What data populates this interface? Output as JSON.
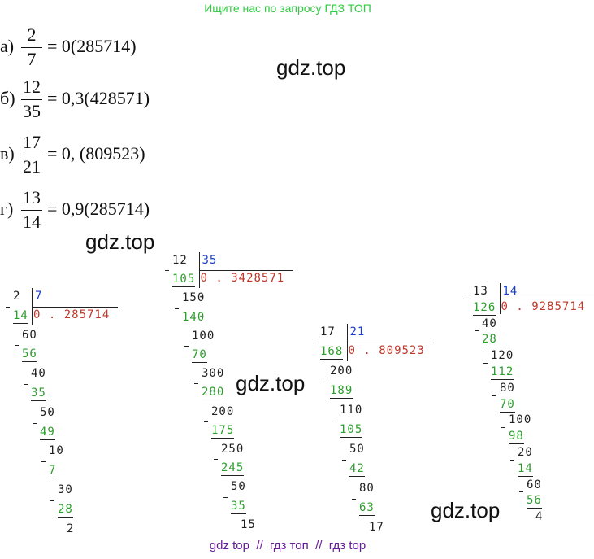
{
  "header": {
    "text": "Ищите нас по запросу ГДЗ ТОП"
  },
  "equations": [
    {
      "label": "а)",
      "numerator": "2",
      "denominator": "7",
      "result": "= 0(285714)"
    },
    {
      "label": "б)",
      "numerator": "12",
      "denominator": "35",
      "result": "= 0,3(428571)"
    },
    {
      "label": "в)",
      "numerator": "17",
      "denominator": "21",
      "result": "= 0, (809523)"
    },
    {
      "label": "г)",
      "numerator": "13",
      "denominator": "14",
      "result": "= 0,9(285714)"
    }
  ],
  "watermarks": [
    "gdz.top",
    "gdz.top",
    "gdz.top",
    "gdz.top"
  ],
  "divisions": [
    {
      "dividend": "2",
      "divisor": "7",
      "quotient": "0 . 285714",
      "rows": [
        "14",
        "60",
        "56",
        "40",
        "35",
        "50",
        "49",
        "10",
        "7",
        "30",
        "28",
        "2"
      ]
    },
    {
      "dividend": "12",
      "divisor": "35",
      "quotient": "0 . 3428571",
      "rows": [
        "105",
        "150",
        "140",
        "100",
        "70",
        "300",
        "280",
        "200",
        "175",
        "250",
        "245",
        "50",
        "35",
        "15"
      ]
    },
    {
      "dividend": "17",
      "divisor": "21",
      "quotient": "0 . 809523",
      "rows": [
        "168",
        "200",
        "189",
        "110",
        "105",
        "50",
        "42",
        "80",
        "63",
        "17"
      ]
    },
    {
      "dividend": "13",
      "divisor": "14",
      "quotient": "0 . 9285714",
      "rows": [
        "126",
        "40",
        "28",
        "120",
        "112",
        "80",
        "70",
        "100",
        "98",
        "20",
        "14",
        "60",
        "56",
        "4"
      ]
    }
  ],
  "footer": {
    "text": "gdz top  //  гдз топ  //  гдз top"
  }
}
